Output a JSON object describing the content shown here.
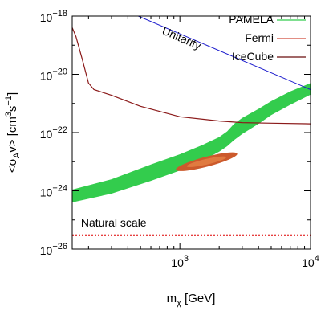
{
  "chart_data": {
    "type": "line",
    "xlabel": {
      "base": "m",
      "sub": "χ",
      "rest": " [GeV]"
    },
    "ylabel": {
      "pre": "<σ",
      "sub": "A",
      "mid": "v> [cm",
      "sup1": "3",
      "mid2": "s",
      "sup2": "−1",
      "post": "]"
    },
    "x_scale": "log",
    "y_scale": "log",
    "xlim": [
      150,
      10000
    ],
    "ylim": [
      1e-26,
      1e-18
    ],
    "x_ticks": [
      {
        "value": 1000,
        "base": "10",
        "exp": "3"
      },
      {
        "value": 10000,
        "base": "10",
        "exp": "4"
      }
    ],
    "y_ticks": [
      {
        "value": 1e-26,
        "base": "10",
        "exp": "−26"
      },
      {
        "value": 1e-24,
        "base": "10",
        "exp": "−24"
      },
      {
        "value": 1e-22,
        "base": "10",
        "exp": "−22"
      },
      {
        "value": 1e-20,
        "base": "10",
        "exp": "−20"
      },
      {
        "value": 1e-18,
        "base": "10",
        "exp": "−18"
      }
    ],
    "legend": {
      "placement": "top-right",
      "entries": [
        {
          "label": "PAMELA",
          "color": "#33cc4d"
        },
        {
          "label": "Fermi",
          "color": "#d04a3a"
        },
        {
          "label": "IceCube",
          "color": "#6b0f0f"
        }
      ]
    },
    "series": [
      {
        "name": "PAMELA",
        "kind": "band",
        "color": "#33cc4d",
        "x": [
          150,
          300,
          600,
          1000,
          1500,
          2000,
          2300,
          2600,
          3000,
          4000,
          5000,
          7000,
          10000
        ],
        "lower": [
          4e-25,
          8e-25,
          2.2e-24,
          5e-24,
          1.1e-23,
          2.2e-23,
          3.4e-23,
          5.5e-23,
          9e-23,
          2e-22,
          4e-22,
          9e-22,
          2e-21
        ],
        "upper": [
          1.1e-24,
          2.5e-24,
          8e-24,
          1.8e-23,
          3.8e-23,
          7e-23,
          1.1e-22,
          2e-22,
          3.2e-22,
          6.5e-22,
          1.2e-21,
          2.6e-21,
          5e-21
        ]
      },
      {
        "name": "Fermi",
        "kind": "region",
        "color_outer": "#cc5a2c",
        "color_inner": "#e07a40",
        "center": [
          1600,
          1e-23
        ],
        "outer": {
          "x_range": [
            850,
            2600
          ],
          "y_range": [
            2.6e-24,
            2.8e-23
          ]
        },
        "inner": {
          "x_range": [
            1050,
            2150
          ],
          "y_range": [
            4.4e-24,
            1.7e-23
          ]
        }
      },
      {
        "name": "IceCube",
        "kind": "line",
        "color": "#8b1a1a",
        "x": [
          150,
          160,
          180,
          200,
          220,
          300,
          500,
          1000,
          2000,
          3000,
          5000,
          10000
        ],
        "y": [
          4e-19,
          2e-19,
          3e-20,
          5e-21,
          3e-21,
          1.9e-21,
          8e-22,
          3.5e-22,
          2.5e-22,
          2.2e-22,
          2.1e-22,
          2e-22
        ]
      },
      {
        "name": "Unitarity",
        "kind": "line",
        "color": "#1a1acc",
        "x": [
          480,
          10000
        ],
        "y": [
          1e-18,
          3e-21
        ]
      },
      {
        "name": "Natural scale",
        "kind": "hline",
        "color": "#dd0000",
        "style": "dotted",
        "y": 3e-26
      }
    ],
    "annotations": [
      {
        "text": "Unitarity",
        "color": "#1a1acc",
        "x": 720,
        "y": 2.5e-19,
        "rotate_along": "Unitarity"
      },
      {
        "text": "Natural scale",
        "color": "#dd0000",
        "x": 175,
        "y": 6e-26
      }
    ]
  }
}
